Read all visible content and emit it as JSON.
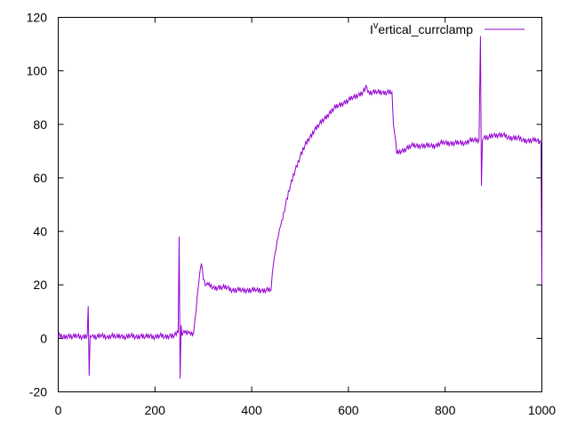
{
  "chart_data": {
    "type": "line",
    "xlim": [
      0,
      1000
    ],
    "ylim": [
      -20,
      120
    ],
    "xticks": [
      0,
      200,
      400,
      600,
      800,
      1000
    ],
    "yticks": [
      -20,
      0,
      20,
      40,
      60,
      80,
      100,
      120
    ],
    "xtick_labels": [
      "0",
      "200",
      "400",
      "600",
      "800",
      "1000"
    ],
    "ytick_labels": [
      "-20",
      "0",
      "20",
      "40",
      "60",
      "80",
      "100",
      "120"
    ],
    "grid": false,
    "legend": "top-right",
    "series": [
      {
        "name_main": "I",
        "name_sup": "v",
        "name_rest": "ertical_currclamp",
        "color": "#9400d3",
        "x": [
          0,
          10,
          20,
          30,
          40,
          50,
          60,
          62,
          64,
          66,
          68,
          70,
          80,
          90,
          100,
          110,
          120,
          130,
          140,
          150,
          160,
          170,
          180,
          190,
          200,
          210,
          220,
          230,
          240,
          248,
          250,
          252,
          254,
          256,
          258,
          262,
          270,
          280,
          285,
          290,
          293,
          296,
          300,
          306,
          310,
          320,
          330,
          340,
          350,
          360,
          370,
          380,
          390,
          400,
          410,
          420,
          430,
          440,
          445,
          450,
          455,
          460,
          470,
          480,
          490,
          500,
          510,
          520,
          530,
          540,
          550,
          560,
          570,
          580,
          590,
          600,
          610,
          620,
          630,
          638,
          640,
          650,
          660,
          670,
          680,
          690,
          693,
          696,
          700,
          710,
          720,
          730,
          740,
          750,
          760,
          770,
          780,
          790,
          800,
          810,
          820,
          830,
          840,
          850,
          860,
          870,
          873,
          875,
          877,
          880,
          890,
          900,
          910,
          920,
          930,
          940,
          950,
          960,
          970,
          980,
          990,
          998,
          1000
        ],
        "y": [
          1,
          0.5,
          1,
          0.5,
          1,
          0.5,
          1,
          12,
          -14,
          1,
          0.5,
          1,
          0.5,
          1,
          0.5,
          1,
          0.5,
          1,
          0.5,
          1,
          0.5,
          1,
          0.5,
          1,
          0.5,
          1,
          0.5,
          1,
          1,
          2,
          38,
          -15,
          5,
          1,
          2,
          2,
          2,
          2,
          10,
          20,
          25,
          28,
          22,
          20,
          20,
          19,
          19,
          19,
          19,
          18,
          18,
          18,
          18,
          18,
          18,
          18,
          18,
          18,
          28,
          33,
          38,
          42,
          50,
          57,
          63,
          68,
          72,
          75,
          78,
          80,
          82,
          84,
          86,
          87,
          88,
          89,
          90,
          91,
          92,
          94,
          92,
          92,
          92,
          92,
          92,
          92,
          80,
          76,
          69,
          70,
          71,
          72,
          72,
          72,
          72,
          72,
          72,
          73,
          73,
          73,
          73,
          73,
          73,
          74,
          74,
          74,
          113,
          57,
          74,
          75,
          75,
          76,
          76,
          76,
          75,
          75,
          75,
          74,
          74,
          74,
          74,
          73,
          20
        ]
      }
    ]
  }
}
